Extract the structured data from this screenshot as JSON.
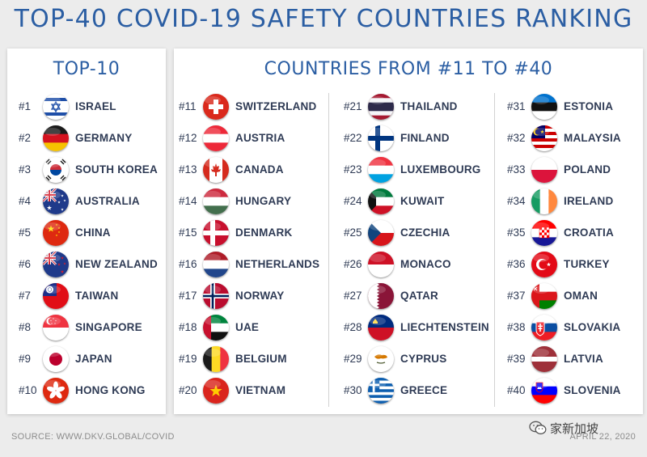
{
  "title": "TOP-40 COVID-19 SAFETY COUNTRIES RANKING",
  "left_panel": {
    "title": "TOP-10",
    "countries": [
      {
        "rank": "#1",
        "name": "ISRAEL",
        "flag": "israel-flag-icon"
      },
      {
        "rank": "#2",
        "name": "GERMANY",
        "flag": "germany-flag-icon"
      },
      {
        "rank": "#3",
        "name": "SOUTH KOREA",
        "flag": "south-korea-flag-icon"
      },
      {
        "rank": "#4",
        "name": "AUSTRALIA",
        "flag": "australia-flag-icon"
      },
      {
        "rank": "#5",
        "name": "CHINA",
        "flag": "china-flag-icon"
      },
      {
        "rank": "#6",
        "name": "NEW ZEALAND",
        "flag": "new-zealand-flag-icon"
      },
      {
        "rank": "#7",
        "name": "TAIWAN",
        "flag": "taiwan-flag-icon"
      },
      {
        "rank": "#8",
        "name": "SINGAPORE",
        "flag": "singapore-flag-icon"
      },
      {
        "rank": "#9",
        "name": "JAPAN",
        "flag": "japan-flag-icon"
      },
      {
        "rank": "#10",
        "name": "HONG KONG",
        "flag": "hong-kong-flag-icon"
      }
    ]
  },
  "right_panel": {
    "title": "COUNTRIES FROM #11 TO #40",
    "columns": [
      [
        {
          "rank": "#11",
          "name": "SWITZERLAND",
          "flag": "switzerland-flag-icon"
        },
        {
          "rank": "#12",
          "name": "AUSTRIA",
          "flag": "austria-flag-icon"
        },
        {
          "rank": "#13",
          "name": "CANADA",
          "flag": "canada-flag-icon"
        },
        {
          "rank": "#14",
          "name": "HUNGARY",
          "flag": "hungary-flag-icon"
        },
        {
          "rank": "#15",
          "name": "DENMARK",
          "flag": "denmark-flag-icon"
        },
        {
          "rank": "#16",
          "name": "NETHERLANDS",
          "flag": "netherlands-flag-icon"
        },
        {
          "rank": "#17",
          "name": "NORWAY",
          "flag": "norway-flag-icon"
        },
        {
          "rank": "#18",
          "name": "UAE",
          "flag": "uae-flag-icon"
        },
        {
          "rank": "#19",
          "name": "BELGIUM",
          "flag": "belgium-flag-icon"
        },
        {
          "rank": "#20",
          "name": "VIETNAM",
          "flag": "vietnam-flag-icon"
        }
      ],
      [
        {
          "rank": "#21",
          "name": "THAILAND",
          "flag": "thailand-flag-icon"
        },
        {
          "rank": "#22",
          "name": "FINLAND",
          "flag": "finland-flag-icon"
        },
        {
          "rank": "#23",
          "name": "LUXEMBOURG",
          "flag": "luxembourg-flag-icon"
        },
        {
          "rank": "#24",
          "name": "KUWAIT",
          "flag": "kuwait-flag-icon"
        },
        {
          "rank": "#25",
          "name": "CZECHIA",
          "flag": "czechia-flag-icon"
        },
        {
          "rank": "#26",
          "name": "MONACO",
          "flag": "monaco-flag-icon"
        },
        {
          "rank": "#27",
          "name": "QATAR",
          "flag": "qatar-flag-icon"
        },
        {
          "rank": "#28",
          "name": "LIECHTENSTEIN",
          "flag": "liechtenstein-flag-icon"
        },
        {
          "rank": "#29",
          "name": "CYPRUS",
          "flag": "cyprus-flag-icon"
        },
        {
          "rank": "#30",
          "name": "GREECE",
          "flag": "greece-flag-icon"
        }
      ],
      [
        {
          "rank": "#31",
          "name": "ESTONIA",
          "flag": "estonia-flag-icon"
        },
        {
          "rank": "#32",
          "name": "MALAYSIA",
          "flag": "malaysia-flag-icon"
        },
        {
          "rank": "#33",
          "name": "POLAND",
          "flag": "poland-flag-icon"
        },
        {
          "rank": "#34",
          "name": "IRELAND",
          "flag": "ireland-flag-icon"
        },
        {
          "rank": "#35",
          "name": "CROATIA",
          "flag": "croatia-flag-icon"
        },
        {
          "rank": "#36",
          "name": "TURKEY",
          "flag": "turkey-flag-icon"
        },
        {
          "rank": "#37",
          "name": "OMAN",
          "flag": "oman-flag-icon"
        },
        {
          "rank": "#38",
          "name": "SLOVAKIA",
          "flag": "slovakia-flag-icon"
        },
        {
          "rank": "#39",
          "name": "LATVIA",
          "flag": "latvia-flag-icon"
        },
        {
          "rank": "#40",
          "name": "SLOVENIA",
          "flag": "slovenia-flag-icon"
        }
      ]
    ]
  },
  "footer": {
    "source": "SOURCE: WWW.DKV.GLOBAL/COVID",
    "date": "APRIL 22, 2020"
  },
  "watermark": {
    "text": "家新加坡",
    "icon": "wechat-icon"
  },
  "colors": {
    "title_blue": "#2b5ea3",
    "text_navy": "#2f3b55",
    "background": "#ececec",
    "panel": "#ffffff"
  }
}
